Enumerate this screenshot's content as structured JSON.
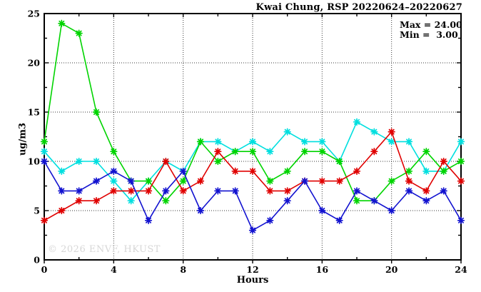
{
  "title": "Kwai Chung, RSP 20220624–20220627",
  "annotation": {
    "max_label": "Max = 24.00",
    "min_label": "Min =  3.00"
  },
  "watermark": "© 2026 ENVF, HKUST",
  "chart_data": {
    "type": "line",
    "title": "Kwai Chung, RSP 20220624–20220627",
    "xlabel": "Hours",
    "ylabel": "ug/m3",
    "xlim": [
      0,
      24
    ],
    "ylim": [
      0,
      25
    ],
    "x_ticks": [
      0,
      4,
      8,
      12,
      16,
      20,
      24
    ],
    "y_ticks": [
      0,
      5,
      10,
      15,
      20,
      25
    ],
    "x_minor_step": 2,
    "y_minor_step": 2.5,
    "grid": true,
    "legend": "none",
    "marker": "asterisk",
    "stats": {
      "max": 24.0,
      "min": 3.0
    },
    "x": [
      0,
      1,
      2,
      3,
      4,
      5,
      6,
      7,
      8,
      9,
      10,
      11,
      12,
      13,
      14,
      15,
      16,
      17,
      18,
      19,
      20,
      21,
      22,
      23,
      24
    ],
    "series": [
      {
        "name": "cyan",
        "color": "#00dfdf",
        "values": [
          11,
          9,
          10,
          10,
          8,
          6,
          8,
          10,
          9,
          12,
          12,
          11,
          12,
          11,
          13,
          12,
          12,
          10,
          14,
          13,
          12,
          12,
          9,
          9,
          12
        ]
      },
      {
        "name": "green",
        "color": "#00d400",
        "values": [
          12,
          24,
          23,
          15,
          11,
          8,
          8,
          6,
          8,
          12,
          10,
          11,
          11,
          8,
          9,
          11,
          11,
          10,
          6,
          6,
          8,
          9,
          11,
          9,
          10
        ]
      },
      {
        "name": "red",
        "color": "#e00000",
        "values": [
          4,
          5,
          6,
          6,
          7,
          7,
          7,
          10,
          7,
          8,
          11,
          9,
          9,
          7,
          7,
          8,
          8,
          8,
          9,
          11,
          13,
          8,
          7,
          10,
          8
        ]
      },
      {
        "name": "blue",
        "color": "#1212d0",
        "values": [
          10,
          7,
          7,
          8,
          9,
          8,
          4,
          7,
          9,
          5,
          7,
          7,
          3,
          4,
          6,
          8,
          5,
          4,
          7,
          6,
          5,
          7,
          6,
          7,
          4
        ]
      }
    ]
  }
}
